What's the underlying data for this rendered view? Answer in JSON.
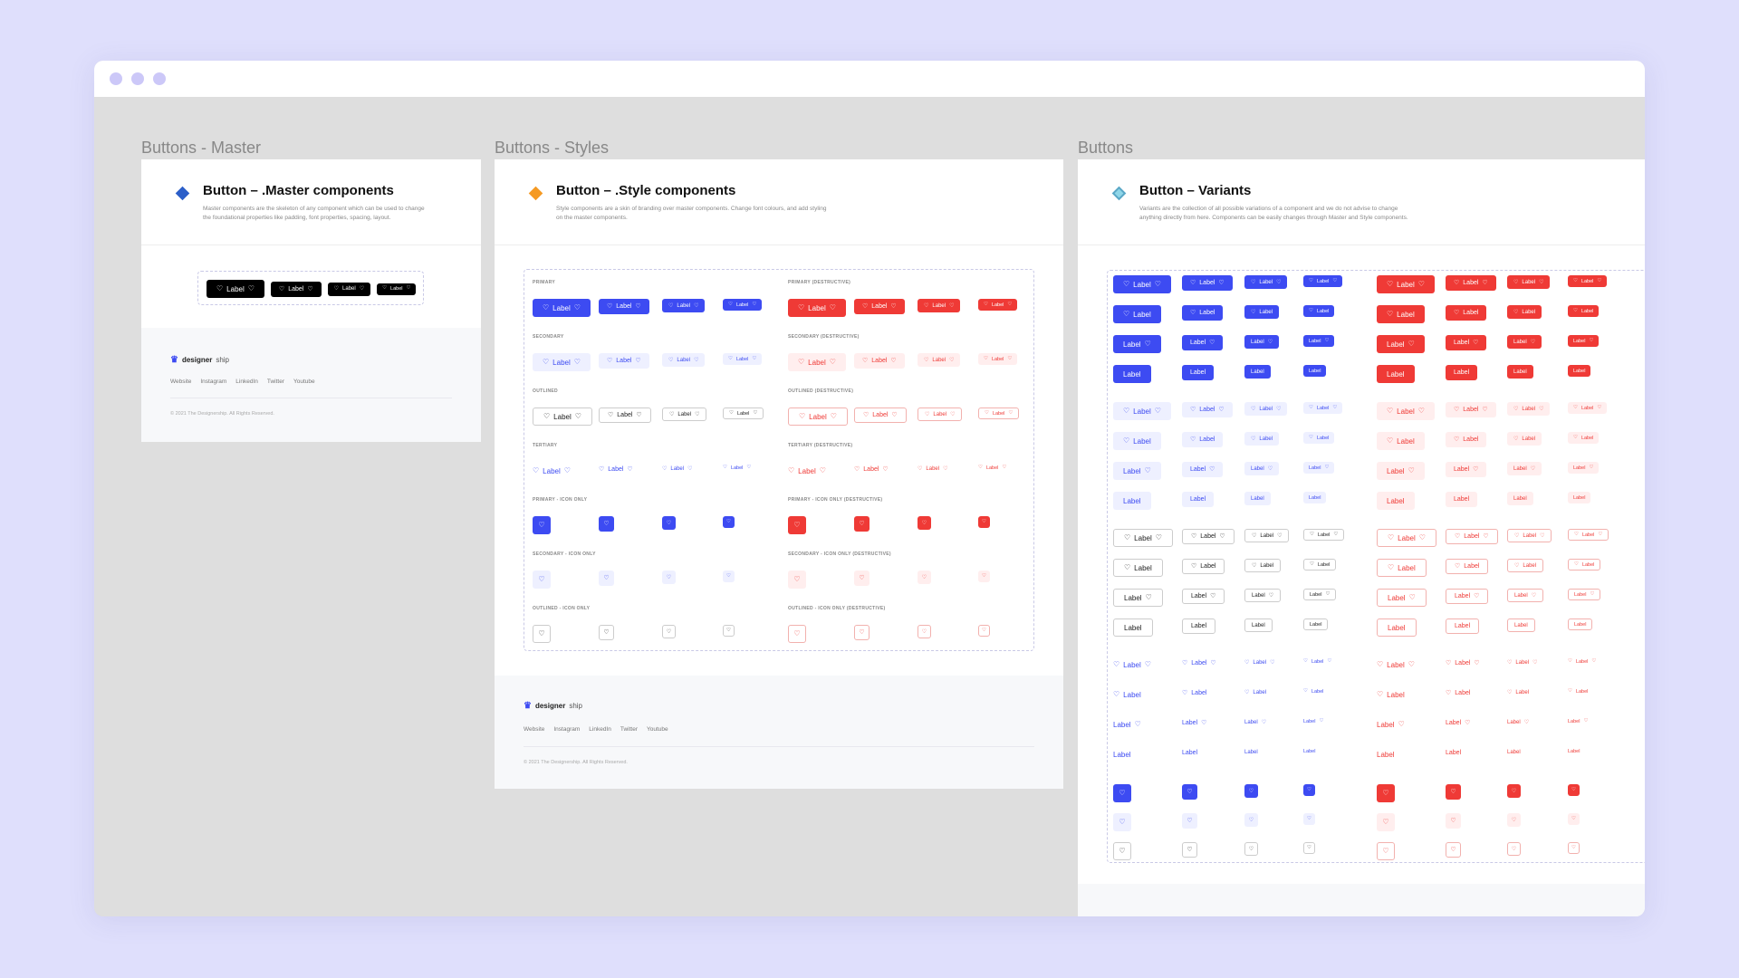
{
  "colors": {
    "primary": "#3d4bf2",
    "destructive": "#ef3a36",
    "master": "#000000"
  },
  "window": {
    "dots": [
      "close-dot",
      "minimize-dot",
      "maximize-dot"
    ]
  },
  "frames": {
    "master": {
      "frame_label": "Buttons - Master",
      "title": "Button – .Master components",
      "desc_1": "Master components are the skeleton of any component which can be used to change",
      "desc_2": "the foundational properties like padding, font properties, spacing, layout.",
      "button_label": "Label",
      "footer": {
        "brand_a": "designer",
        "brand_b": "ship",
        "links": [
          "Website",
          "Instagram",
          "LinkedIn",
          "Twitter",
          "Youtube"
        ],
        "copyright": "© 2021 The Designership. All Rights Reserved."
      }
    },
    "styles": {
      "frame_label": "Buttons - Styles",
      "title": "Button – .Style components",
      "desc_1": "Style components are a skin of branding over master components. Change font colours, and add styling",
      "desc_2": "on the master components.",
      "button_label": "Label",
      "sections": {
        "primary": "PRIMARY",
        "primary_destructive": "PRIMARY (DESTRUCTIVE)",
        "secondary": "SECONDARY",
        "secondary_destructive": "SECONDARY (DESTRUCTIVE)",
        "outlined": "OUTLINED",
        "outlined_destructive": "OUTLINED (DESTRUCTIVE)",
        "tertiary": "TERTIARY",
        "tertiary_destructive": "TERTIARY (DESTRUCTIVE)",
        "primary_icon": "PRIMARY - ICON ONLY",
        "primary_icon_destructive": "PRIMARY - ICON ONLY (DESTRUCTIVE)",
        "secondary_icon": "SECONDARY - ICON ONLY",
        "secondary_icon_destructive": "SECONDARY - ICON ONLY (DESTRUCTIVE)",
        "outlined_icon": "OUTLINED - ICON ONLY",
        "outlined_icon_destructive": "OUTLINED - ICON ONLY (DESTRUCTIVE)"
      },
      "footer": {
        "brand_a": "designer",
        "brand_b": "ship",
        "links": [
          "Website",
          "Instagram",
          "LinkedIn",
          "Twitter",
          "Youtube"
        ],
        "copyright": "© 2021 The Designership. All Rights Reserved."
      }
    },
    "variants": {
      "frame_label": "Buttons",
      "title": "Button – Variants",
      "desc_1": "Variants are the collection of all possible variations of a component and we do not advise to change",
      "desc_2": "anything directly from here. Components can be easily changes through Master and Style components.",
      "button_label": "Label"
    }
  },
  "icons": {
    "heart": "♡",
    "diamond_master": "diamond-icon",
    "diamond_style": "diamond-icon"
  }
}
